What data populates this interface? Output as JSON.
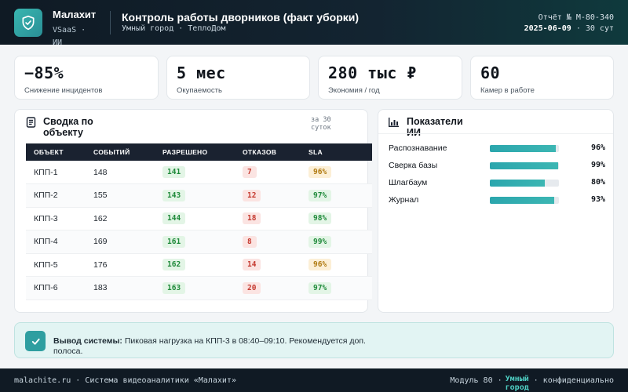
{
  "header": {
    "brand": "Малахит",
    "brand_sub": "VSaaS · ИИ",
    "title": "Контроль работы дворников (факт уборки)",
    "subtitle": "Умный город · ТеплоДом",
    "report_label": "Отчёт № M-80-340",
    "report_date": "2025-06-09",
    "report_period": "· 30 сут"
  },
  "kpis": [
    {
      "value": "−85%",
      "label": "Снижение инцидентов"
    },
    {
      "value": "5 мес",
      "label": "Окупаемость"
    },
    {
      "value": "280 тыс ₽",
      "label": "Экономия / год"
    },
    {
      "value": "60",
      "label": "Камер в работе"
    }
  ],
  "summary": {
    "title": "Сводка по объекту",
    "period": "за 30 суток",
    "columns": [
      "ОБЪЕКТ",
      "СОБЫТИЙ",
      "РАЗРЕШЕНО",
      "ОТКАЗОВ",
      "SLA"
    ],
    "rows": [
      {
        "object": "КПП-1",
        "events": "148",
        "allowed": "141",
        "denied": "7",
        "sla": "96%",
        "sla_status": "amber"
      },
      {
        "object": "КПП-2",
        "events": "155",
        "allowed": "143",
        "denied": "12",
        "sla": "97%",
        "sla_status": "green"
      },
      {
        "object": "КПП-3",
        "events": "162",
        "allowed": "144",
        "denied": "18",
        "sla": "98%",
        "sla_status": "green"
      },
      {
        "object": "КПП-4",
        "events": "169",
        "allowed": "161",
        "denied": "8",
        "sla": "99%",
        "sla_status": "green"
      },
      {
        "object": "КПП-5",
        "events": "176",
        "allowed": "162",
        "denied": "14",
        "sla": "96%",
        "sla_status": "amber"
      },
      {
        "object": "КПП-6",
        "events": "183",
        "allowed": "163",
        "denied": "20",
        "sla": "97%",
        "sla_status": "green"
      }
    ]
  },
  "ai_metrics": {
    "title": "Показатели ИИ",
    "items": [
      {
        "label": "Распознавание",
        "value": "96%",
        "fraction": 0.96
      },
      {
        "label": "Сверка базы",
        "value": "99%",
        "fraction": 0.99
      },
      {
        "label": "Шлагбаум",
        "value": "80%",
        "fraction": 0.8
      },
      {
        "label": "Журнал",
        "value": "93%",
        "fraction": 0.93
      }
    ]
  },
  "conclusion": {
    "label": "Вывод системы:",
    "text": "Пиковая нагрузка на КПП-3 в 08:40–09:10. Рекомендуется доп. полоса."
  },
  "footer": {
    "left": "malachite.ru · Система видеоаналитики «Малахит»",
    "module": "Модуль 80 ·",
    "highlight": "Умный город",
    "right": "· конфиденциально"
  },
  "colors": {
    "accent": "#2e9ea0",
    "header_bg": "#0f1a24",
    "success": "#1f8a3a",
    "danger": "#c53a30",
    "warning": "#b07a10"
  },
  "icons": {
    "logo": "shield-check-icon",
    "summary": "document-icon",
    "ai": "bar-chart-icon",
    "conclusion": "check-icon"
  }
}
